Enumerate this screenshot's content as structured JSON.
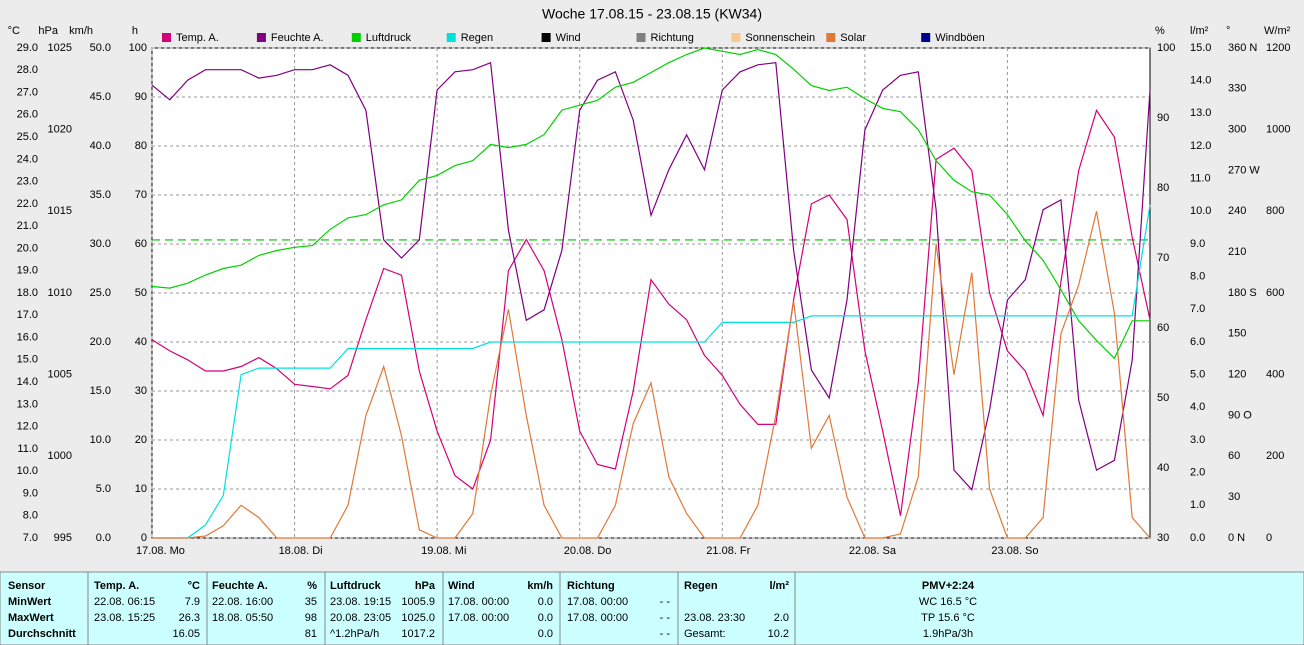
{
  "chart_data": {
    "type": "line",
    "title": "Woche 17.08.15 - 23.08.15 (KW34)",
    "xlim": [
      0,
      168
    ],
    "xticks": [
      {
        "value": 0,
        "label": "17.08.  Mo"
      },
      {
        "value": 24,
        "label": "18.08.  Di"
      },
      {
        "value": 48,
        "label": "19.08.  Mi"
      },
      {
        "value": 72,
        "label": "20.08.  Do"
      },
      {
        "value": 96,
        "label": "21.08.  Fr"
      },
      {
        "value": 120,
        "label": "22.08.  Sa"
      },
      {
        "value": 144,
        "label": "23.08.  So"
      }
    ],
    "grid": true,
    "grid_axis": 2,
    "axes": [
      {
        "name": "°C",
        "side": "left",
        "color": "#d4007a",
        "lim": [
          7,
          29
        ],
        "ticks": [
          {
            "value": 29,
            "label": "29.0"
          },
          {
            "value": 28,
            "label": "28.0"
          },
          {
            "value": 27,
            "label": "27.0"
          },
          {
            "value": 26,
            "label": "26.0"
          },
          {
            "value": 25,
            "label": "25.0"
          },
          {
            "value": 24,
            "label": "24.0"
          },
          {
            "value": 23,
            "label": "23.0"
          },
          {
            "value": 22,
            "label": "22.0"
          },
          {
            "value": 21,
            "label": "21.0"
          },
          {
            "value": 20,
            "label": "20.0"
          },
          {
            "value": 19,
            "label": "19.0"
          },
          {
            "value": 18,
            "label": "18.0"
          },
          {
            "value": 17,
            "label": "17.0"
          },
          {
            "value": 16,
            "label": "16.0"
          },
          {
            "value": 15,
            "label": "15.0"
          },
          {
            "value": 14,
            "label": "14.0"
          },
          {
            "value": 13,
            "label": "13.0"
          },
          {
            "value": 12,
            "label": "12.0"
          },
          {
            "value": 11,
            "label": "11.0"
          },
          {
            "value": 10,
            "label": "10.0"
          },
          {
            "value": 9,
            "label": "9.0"
          },
          {
            "value": 8,
            "label": "8.0"
          },
          {
            "value": 7,
            "label": "7.0"
          }
        ]
      },
      {
        "name": "hPa",
        "side": "left",
        "color": "#00c000",
        "lim": [
          995,
          1025
        ],
        "ticks": [
          1025,
          1020,
          1015,
          1010,
          1005,
          1000,
          995
        ]
      },
      {
        "name": "km/h",
        "side": "left",
        "color": "#000000",
        "lim": [
          0,
          50
        ],
        "ticks": [
          {
            "value": 50,
            "label": "50.0"
          },
          {
            "value": 45,
            "label": "45.0"
          },
          {
            "value": 40,
            "label": "40.0"
          },
          {
            "value": 35,
            "label": "35.0"
          },
          {
            "value": 30,
            "label": "30.0"
          },
          {
            "value": 25,
            "label": "25.0"
          },
          {
            "value": 20,
            "label": "20.0"
          },
          {
            "value": 15,
            "label": "15.0"
          },
          {
            "value": 10,
            "label": "10.0"
          },
          {
            "value": 5,
            "label": "5.0"
          },
          {
            "value": 0,
            "label": "0.0"
          }
        ]
      },
      {
        "name": "h",
        "side": "left",
        "color": "#f8c890",
        "lim": [
          0,
          100
        ],
        "ticks": [
          100,
          90,
          80,
          70,
          60,
          50,
          40,
          30,
          20,
          10,
          0
        ]
      },
      {
        "name": "%",
        "side": "right",
        "color": "#800080",
        "lim": [
          30,
          100
        ],
        "ticks": [
          100,
          90,
          80,
          70,
          60,
          50,
          40,
          30
        ]
      },
      {
        "name": "l/m²",
        "side": "right",
        "color": "#00c8c8",
        "lim": [
          0,
          15
        ],
        "ticks": [
          {
            "value": 15,
            "label": "15.0"
          },
          {
            "value": 14,
            "label": "14.0"
          },
          {
            "value": 13,
            "label": "13.0"
          },
          {
            "value": 12,
            "label": "12.0"
          },
          {
            "value": 11,
            "label": "11.0"
          },
          {
            "value": 10,
            "label": "10.0"
          },
          {
            "value": 9,
            "label": "9.0"
          },
          {
            "value": 8,
            "label": "8.0"
          },
          {
            "value": 7,
            "label": "7.0"
          },
          {
            "value": 6,
            "label": "6.0"
          },
          {
            "value": 5,
            "label": "5.0"
          },
          {
            "value": 4,
            "label": "4.0"
          },
          {
            "value": 3,
            "label": "3.0"
          },
          {
            "value": 2,
            "label": "2.0"
          },
          {
            "value": 1,
            "label": "1.0"
          },
          {
            "value": 0,
            "label": "0.0"
          }
        ]
      },
      {
        "name": "°",
        "side": "right",
        "color": "#505050",
        "lim": [
          0,
          360
        ],
        "ticks": [
          {
            "value": 360,
            "label": "360 N"
          },
          {
            "value": 330,
            "label": "330"
          },
          {
            "value": 300,
            "label": "300"
          },
          {
            "value": 270,
            "label": "270 W"
          },
          {
            "value": 240,
            "label": "240"
          },
          {
            "value": 210,
            "label": "210"
          },
          {
            "value": 180,
            "label": "180 S"
          },
          {
            "value": 150,
            "label": "150"
          },
          {
            "value": 120,
            "label": "120"
          },
          {
            "value": 90,
            "label": "90  O"
          },
          {
            "value": 60,
            "label": "60"
          },
          {
            "value": 30,
            "label": "30"
          },
          {
            "value": 0,
            "label": "0   N"
          }
        ]
      },
      {
        "name": "W/m²",
        "side": "right",
        "color": "#e07838",
        "lim": [
          0,
          1200
        ],
        "ticks": [
          1200,
          1000,
          800,
          600,
          400,
          200,
          0
        ]
      }
    ],
    "reference_lines": [
      {
        "axis": 1,
        "value": 1013.25,
        "color": "#00c000"
      }
    ],
    "x": [
      0,
      3,
      6,
      9,
      12,
      15,
      18,
      21,
      24,
      27,
      30,
      33,
      36,
      39,
      42,
      45,
      48,
      51,
      54,
      57,
      60,
      63,
      66,
      69,
      72,
      75,
      78,
      81,
      84,
      87,
      90,
      93,
      96,
      99,
      102,
      105,
      108,
      111,
      114,
      117,
      120,
      123,
      126,
      129,
      132,
      135,
      138,
      141,
      144,
      147,
      150,
      153,
      156,
      159,
      162,
      165,
      168
    ],
    "series": [
      {
        "name": "Temp. A.",
        "color": "#d4007a",
        "axis": 0,
        "values": [
          15.9,
          15.4,
          15.0,
          14.5,
          14.5,
          14.7,
          15.1,
          14.6,
          13.9,
          13.8,
          13.7,
          14.3,
          16.8,
          19.1,
          18.8,
          14.5,
          11.8,
          9.8,
          9.2,
          11.4,
          19.0,
          20.4,
          19.0,
          15.9,
          11.8,
          10.3,
          10.1,
          13.6,
          18.6,
          17.5,
          16.8,
          15.2,
          14.3,
          13.0,
          12.1,
          12.1,
          17.7,
          22.0,
          22.4,
          21.3,
          15.4,
          11.8,
          8.0,
          14.0,
          24.0,
          24.5,
          23.5,
          18.0,
          15.4,
          14.5,
          12.5,
          18.5,
          23.5,
          26.2,
          25.0,
          20.5,
          16.8
        ]
      },
      {
        "name": "Feuchte A.",
        "color": "#800080",
        "axis": 4,
        "values": [
          94.7,
          92.6,
          95.4,
          96.9,
          96.9,
          96.9,
          95.7,
          96.1,
          96.9,
          96.9,
          97.6,
          96.1,
          91.1,
          72.6,
          70,
          72.6,
          94,
          96.6,
          96.9,
          97.9,
          74,
          61.1,
          62.6,
          71.1,
          91.1,
          95.4,
          96.6,
          89.7,
          76.1,
          82.6,
          87.6,
          82.6,
          94,
          96.6,
          97.6,
          97.9,
          71.1,
          54,
          50,
          64,
          88.3,
          94,
          96.1,
          96.6,
          76.9,
          39.7,
          36.9,
          48.3,
          64,
          66.9,
          76.9,
          78.3,
          49.7,
          39.7,
          41.1,
          55.4,
          94
        ]
      },
      {
        "name": "Luftdruck",
        "color": "#00d000",
        "axis": 1,
        "values": [
          1010.4,
          1010.3,
          1010.6,
          1011.1,
          1011.5,
          1011.7,
          1012.3,
          1012.6,
          1012.8,
          1012.9,
          1013.9,
          1014.6,
          1014.8,
          1015.4,
          1015.7,
          1016.9,
          1017.2,
          1017.8,
          1018.1,
          1019.1,
          1018.9,
          1019.1,
          1019.7,
          1021.2,
          1021.5,
          1021.8,
          1022.6,
          1022.9,
          1023.5,
          1024.1,
          1024.6,
          1025.0,
          1024.8,
          1024.6,
          1024.9,
          1024.6,
          1023.7,
          1022.7,
          1022.4,
          1022.6,
          1021.9,
          1021.3,
          1021.1,
          1020.0,
          1018.1,
          1016.9,
          1016.2,
          1016.0,
          1014.8,
          1013.2,
          1012.0,
          1010.2,
          1008.3,
          1007.1,
          1006.0,
          1008.3,
          1008.3
        ]
      },
      {
        "name": "Regen",
        "color": "#00e0e0",
        "axis": 5,
        "values": [
          0,
          0,
          0,
          0.4,
          1.3,
          5.0,
          5.2,
          5.2,
          5.2,
          5.2,
          5.2,
          5.8,
          5.8,
          5.8,
          5.8,
          5.8,
          5.8,
          5.8,
          5.8,
          6.0,
          6.0,
          6.0,
          6.0,
          6.0,
          6.0,
          6.0,
          6.0,
          6.0,
          6.0,
          6.0,
          6.0,
          6.0,
          6.6,
          6.6,
          6.6,
          6.6,
          6.6,
          6.8,
          6.8,
          6.8,
          6.8,
          6.8,
          6.8,
          6.8,
          6.8,
          6.8,
          6.8,
          6.8,
          6.8,
          6.8,
          6.8,
          6.8,
          6.8,
          6.8,
          6.8,
          6.8,
          10.2
        ]
      },
      {
        "name": "Wind",
        "color": "#000000",
        "axis": 2
      },
      {
        "name": "Richtung",
        "color": "#808080",
        "axis": 6
      },
      {
        "name": "Sonnenschein",
        "color": "#f8c890",
        "axis": 3
      },
      {
        "name": "Solar",
        "color": "#e07838",
        "axis": 7,
        "values": [
          0,
          0,
          0,
          5,
          30,
          80,
          50,
          0,
          0,
          0,
          0,
          80,
          300,
          420,
          250,
          20,
          0,
          0,
          60,
          350,
          560,
          300,
          80,
          0,
          0,
          0,
          80,
          280,
          380,
          150,
          60,
          0,
          0,
          0,
          80,
          300,
          580,
          220,
          300,
          100,
          0,
          0,
          10,
          150,
          720,
          400,
          650,
          120,
          0,
          0,
          50,
          500,
          620,
          800,
          550,
          50,
          0
        ]
      },
      {
        "name": "Windböen",
        "color": "#000090",
        "axis": 2
      }
    ]
  },
  "table": {
    "rows": [
      [
        "Sensor",
        "Temp. A.",
        "°C",
        "Feuchte A.",
        "%",
        "Luftdruck",
        "hPa",
        "Wind",
        "km/h",
        "Richtung",
        null,
        "Regen",
        "l/m²",
        "PMV+2:24"
      ],
      [
        "MinWert",
        "22.08.  06:15",
        "7.9",
        "22.08.  16:00",
        "35",
        "23.08.  19:15",
        "1005.9",
        "17.08.  00:00",
        "0.0",
        "17.08.  00:00",
        "- -",
        null,
        null,
        "WC 16.5 °C"
      ],
      [
        "MaxWert",
        "23.08.  15:25",
        "26.3",
        "18.08.  05:50",
        "98",
        "20.08.  23:05",
        "1025.0",
        "17.08.  00:00",
        "0.0",
        "17.08.  00:00",
        "- -",
        "23.08.  23:30",
        "2.0",
        "TP 15.6 °C"
      ],
      [
        "Durchschnitt",
        null,
        "16.05",
        null,
        "81",
        "^1.2hPa/h",
        "1017.2",
        null,
        "0.0",
        null,
        "- -",
        "Gesamt:",
        "10.2",
        "1.9hPa/3h"
      ]
    ]
  }
}
